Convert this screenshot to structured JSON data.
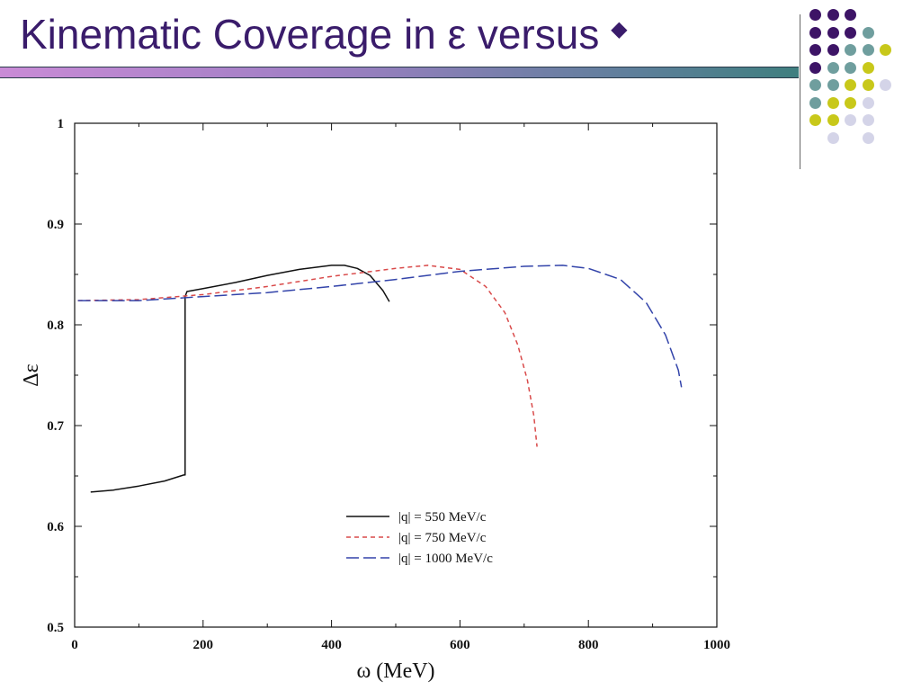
{
  "slide": {
    "title": "Kinematic Coverage in ε versus",
    "title_bullet": "◆"
  },
  "colors": {
    "title": "#3a1c6b",
    "purple": "#3d1466",
    "teal": "#6f9e9e",
    "yellow": "#c8c81a",
    "lavender": "#d4d4e8"
  },
  "decor": {
    "dots": [
      [
        "purple",
        "purple",
        "purple",
        null,
        null
      ],
      [
        "purple",
        "purple",
        "purple",
        "teal",
        null
      ],
      [
        "purple",
        "purple",
        "teal",
        "teal",
        "yellow"
      ],
      [
        "purple",
        "teal",
        "teal",
        "yellow",
        null
      ],
      [
        "teal",
        "teal",
        "yellow",
        "yellow",
        "lavender"
      ],
      [
        "teal",
        "yellow",
        "yellow",
        "lavender",
        null
      ],
      [
        "yellow",
        "yellow",
        "lavender",
        "lavender",
        null
      ],
      [
        null,
        "lavender",
        null,
        "lavender",
        null
      ]
    ]
  },
  "chart_data": {
    "type": "line",
    "title": "",
    "xlabel": "ω (MeV)",
    "ylabel": "Δε",
    "xlim": [
      0,
      1000
    ],
    "ylim": [
      0.5,
      1.0
    ],
    "x_ticks": [
      0,
      200,
      400,
      600,
      800,
      1000
    ],
    "y_ticks": [
      0.5,
      0.6,
      0.7,
      0.8,
      0.9,
      1.0
    ],
    "y_tick_labels": [
      "0.5",
      "0.6",
      "0.7",
      "0.8",
      "0.9",
      "1"
    ],
    "grid": false,
    "legend_position": "bottom-center",
    "series": [
      {
        "name": "|q| =  550 MeV/c",
        "color": "#111111",
        "dash": "solid",
        "x": [
          25,
          60,
          100,
          140,
          170,
          172,
          172,
          175,
          200,
          250,
          300,
          350,
          400,
          420,
          440,
          460,
          480,
          490
        ],
        "y": [
          0.634,
          0.636,
          0.64,
          0.645,
          0.651,
          0.651,
          0.828,
          0.833,
          0.836,
          0.842,
          0.849,
          0.855,
          0.859,
          0.859,
          0.856,
          0.849,
          0.834,
          0.823
        ]
      },
      {
        "name": "|q| =  750 MeV/c",
        "color": "#d94a4a",
        "dash": "short",
        "x": [
          5,
          100,
          200,
          300,
          400,
          500,
          550,
          600,
          640,
          670,
          690,
          705,
          715,
          720
        ],
        "y": [
          0.824,
          0.825,
          0.83,
          0.838,
          0.848,
          0.856,
          0.859,
          0.855,
          0.838,
          0.812,
          0.78,
          0.745,
          0.71,
          0.679
        ]
      },
      {
        "name": "|q| = 1000 MeV/c",
        "color": "#3344aa",
        "dash": "long",
        "x": [
          5,
          100,
          200,
          300,
          400,
          500,
          600,
          700,
          760,
          800,
          850,
          890,
          920,
          940,
          945
        ],
        "y": [
          0.824,
          0.824,
          0.828,
          0.832,
          0.838,
          0.845,
          0.853,
          0.858,
          0.859,
          0.856,
          0.845,
          0.822,
          0.79,
          0.755,
          0.738
        ]
      }
    ]
  }
}
